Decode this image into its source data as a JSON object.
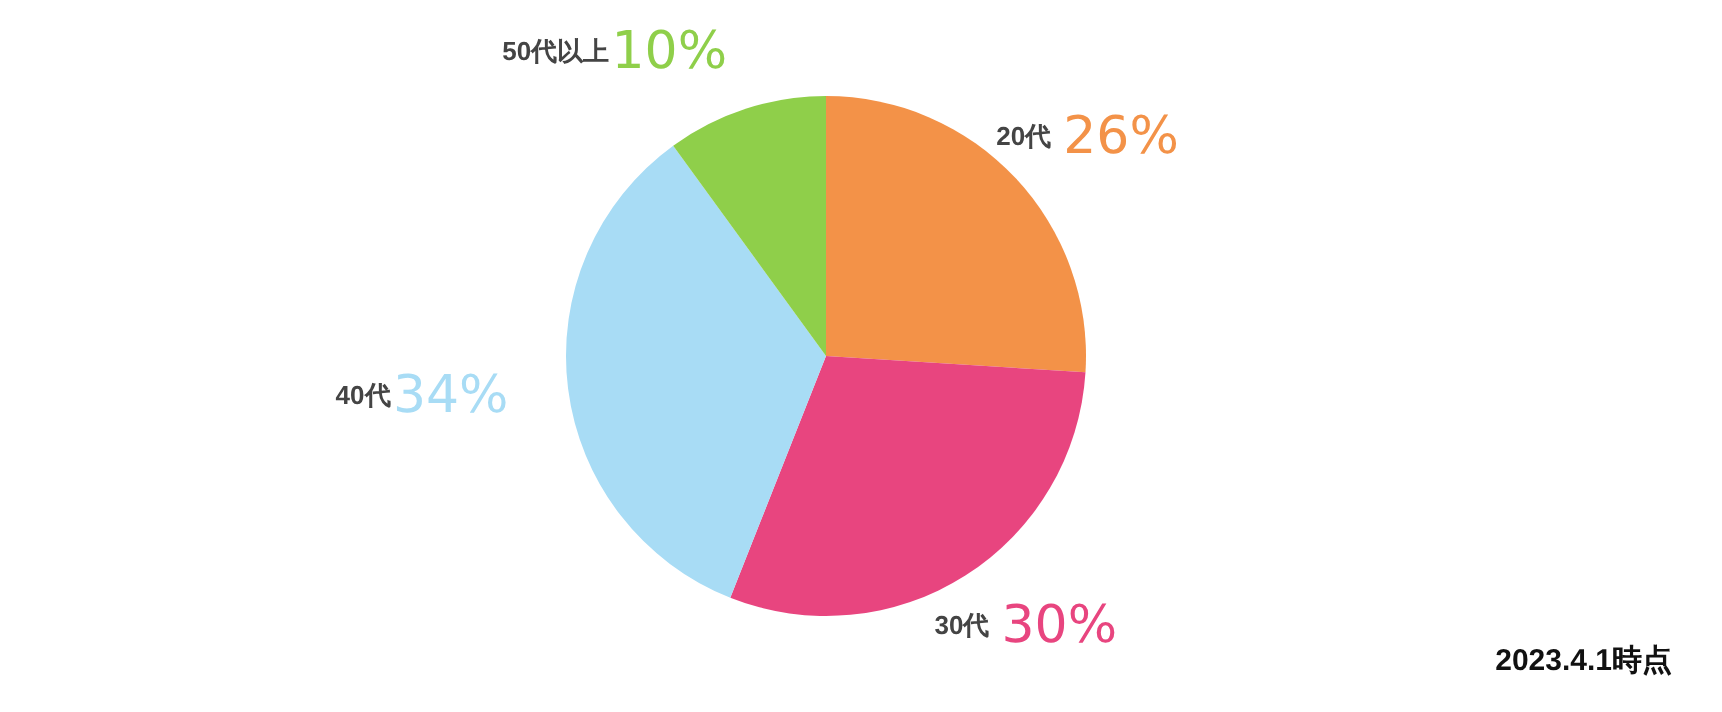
{
  "chart_data": {
    "type": "pie",
    "categories": [
      "20代",
      "30代",
      "40代",
      "50代以上"
    ],
    "values": [
      26,
      30,
      34,
      10
    ],
    "value_labels": [
      "26%",
      "30%",
      "34%",
      "10%"
    ],
    "colors": [
      "#f39248",
      "#e8457f",
      "#a8dcf5",
      "#8fcf4a"
    ],
    "annotations": [
      "2023.4.1時点"
    ]
  }
}
